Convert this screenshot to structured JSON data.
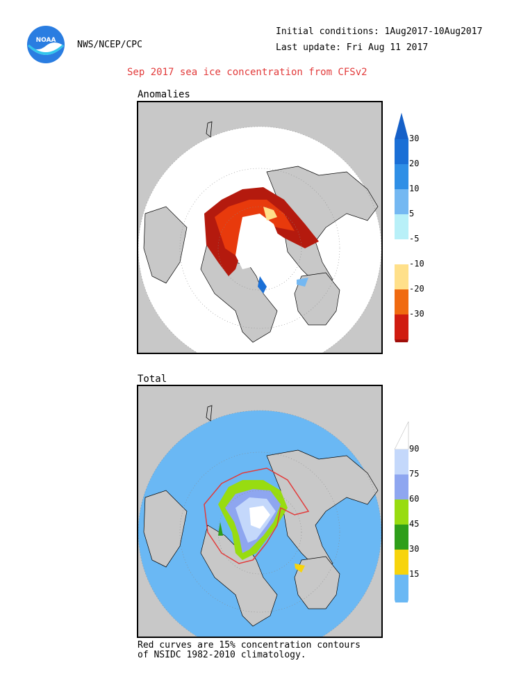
{
  "header": {
    "agency": "NWS/NCEP/CPC",
    "initial_conditions": "Initial conditions: 1Aug2017-10Aug2017",
    "last_update": "Last update: Fri Aug 11 2017",
    "title": "Sep 2017 sea ice concentration from CFSv2",
    "logo_text": "NOAA"
  },
  "anomalies": {
    "label": "Anomalies",
    "colorbar": [
      {
        "label": "30",
        "color": "#1a6fd6"
      },
      {
        "label": "20",
        "color": "#2f8fe6"
      },
      {
        "label": "10",
        "color": "#74b8f2"
      },
      {
        "label": "5",
        "color": "#b8f0f8"
      },
      {
        "label": "-5",
        "color": "#ffffff"
      },
      {
        "label": "-10",
        "color": "#ffe08a"
      },
      {
        "label": "-20",
        "color": "#f06a10"
      },
      {
        "label": "-30",
        "color": "#d01c10"
      }
    ],
    "colorbar_ends": {
      "top": "#1560c8",
      "bottom": "#a00e0a"
    }
  },
  "total": {
    "label": "Total",
    "colorbar": [
      {
        "label": "90",
        "color": "#c4d8fb"
      },
      {
        "label": "75",
        "color": "#8ea6f0"
      },
      {
        "label": "60",
        "color": "#98dc10"
      },
      {
        "label": "45",
        "color": "#2e9e1a"
      },
      {
        "label": "30",
        "color": "#f7d40c"
      },
      {
        "label": "15",
        "color": "#6ab8f4"
      }
    ],
    "colorbar_top": "#ffffff"
  },
  "footer": {
    "line1": "Red curves are 15% concentration contours",
    "line2": "of NSIDC 1982-2010 climatology."
  },
  "colors": {
    "land": "#c8c8c8",
    "ocean_total": "#6ab8f4",
    "ocean_anom": "#ffffff",
    "climatology_contour": "#e23a3a"
  }
}
